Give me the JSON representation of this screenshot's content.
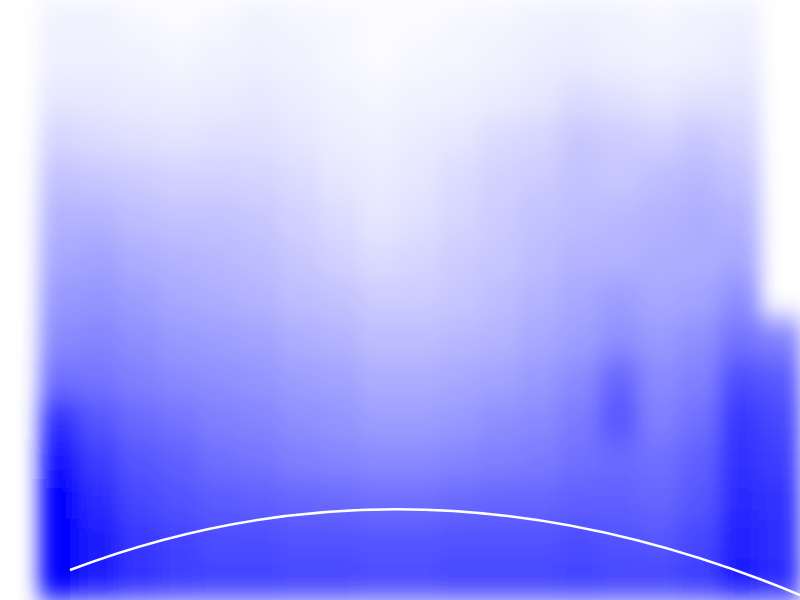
{
  "chart_data": {
    "type": "heatmap",
    "color": "#0000ff",
    "tick_labels": false,
    "color_range": [
      0,
      1
    ],
    "cells": [
      [
        null,
        0.05,
        0.05,
        0.03,
        0.02,
        0.03,
        0.05,
        0.04,
        0.03,
        0.02,
        0.02,
        0.03,
        0.04,
        0.05,
        0.06,
        0.05,
        0.04,
        0.05,
        0.06,
        null
      ],
      [
        null,
        0.06,
        0.06,
        0.05,
        0.04,
        0.05,
        0.06,
        0.05,
        0.03,
        0.02,
        0.03,
        0.04,
        0.05,
        0.07,
        0.08,
        0.06,
        0.05,
        0.06,
        0.08,
        null
      ],
      [
        null,
        0.1,
        0.09,
        0.08,
        0.07,
        0.08,
        0.09,
        0.07,
        0.05,
        0.04,
        0.05,
        0.06,
        0.08,
        0.1,
        0.14,
        0.12,
        0.1,
        0.12,
        0.12,
        null
      ],
      [
        null,
        0.16,
        0.14,
        0.12,
        0.11,
        0.12,
        0.12,
        0.1,
        0.07,
        0.06,
        0.08,
        0.1,
        0.14,
        0.16,
        0.22,
        0.2,
        0.18,
        0.22,
        0.18,
        null
      ],
      [
        null,
        0.24,
        0.22,
        0.2,
        0.18,
        0.18,
        0.17,
        0.14,
        0.1,
        0.08,
        0.1,
        0.14,
        0.18,
        0.2,
        0.24,
        0.22,
        0.26,
        0.28,
        0.24,
        null
      ],
      [
        null,
        0.3,
        0.3,
        0.26,
        0.24,
        0.24,
        0.22,
        0.18,
        0.14,
        0.1,
        0.12,
        0.16,
        0.2,
        0.24,
        0.26,
        0.28,
        0.3,
        0.32,
        0.3,
        null
      ],
      [
        null,
        0.34,
        0.36,
        0.32,
        0.3,
        0.28,
        0.26,
        0.22,
        0.18,
        0.14,
        0.16,
        0.2,
        0.22,
        0.26,
        0.3,
        0.3,
        0.32,
        0.32,
        0.34,
        null
      ],
      [
        null,
        0.4,
        0.42,
        0.38,
        0.34,
        0.32,
        0.3,
        0.26,
        0.24,
        0.2,
        0.2,
        0.22,
        0.26,
        0.3,
        0.34,
        0.38,
        0.34,
        0.36,
        0.44,
        null
      ],
      [
        null,
        0.46,
        0.48,
        0.44,
        0.4,
        0.38,
        0.36,
        0.32,
        0.3,
        0.26,
        0.26,
        0.28,
        0.3,
        0.34,
        0.38,
        0.44,
        0.4,
        0.44,
        0.55,
        0.5
      ],
      [
        null,
        0.56,
        0.54,
        0.5,
        0.46,
        0.44,
        0.42,
        0.38,
        0.36,
        0.32,
        0.32,
        0.34,
        0.36,
        0.4,
        0.46,
        0.6,
        0.46,
        0.5,
        0.7,
        0.65
      ],
      [
        null,
        0.8,
        0.66,
        0.58,
        0.54,
        0.5,
        0.48,
        0.44,
        0.42,
        0.38,
        0.38,
        0.4,
        0.44,
        0.46,
        0.52,
        0.66,
        0.5,
        0.56,
        0.78,
        0.72
      ],
      [
        null,
        0.92,
        0.76,
        0.66,
        0.62,
        0.56,
        0.54,
        0.5,
        0.48,
        0.46,
        0.46,
        0.48,
        0.5,
        0.52,
        0.56,
        0.58,
        0.56,
        0.62,
        0.8,
        0.76
      ],
      [
        null,
        1,
        0.84,
        0.72,
        0.68,
        0.64,
        0.62,
        0.6,
        0.58,
        0.56,
        0.56,
        0.58,
        0.6,
        0.6,
        0.62,
        0.62,
        0.6,
        0.66,
        0.84,
        0.8
      ],
      [
        null,
        1,
        0.9,
        0.78,
        0.74,
        0.7,
        0.7,
        0.68,
        0.68,
        0.66,
        0.66,
        0.68,
        0.68,
        0.68,
        0.7,
        0.68,
        0.66,
        0.72,
        0.86,
        0.82
      ],
      [
        null,
        0.98,
        0.88,
        0.8,
        0.76,
        0.74,
        0.74,
        0.72,
        0.72,
        0.7,
        0.7,
        0.72,
        0.72,
        0.72,
        0.74,
        0.72,
        0.72,
        0.76,
        0.88,
        0.84
      ]
    ]
  }
}
